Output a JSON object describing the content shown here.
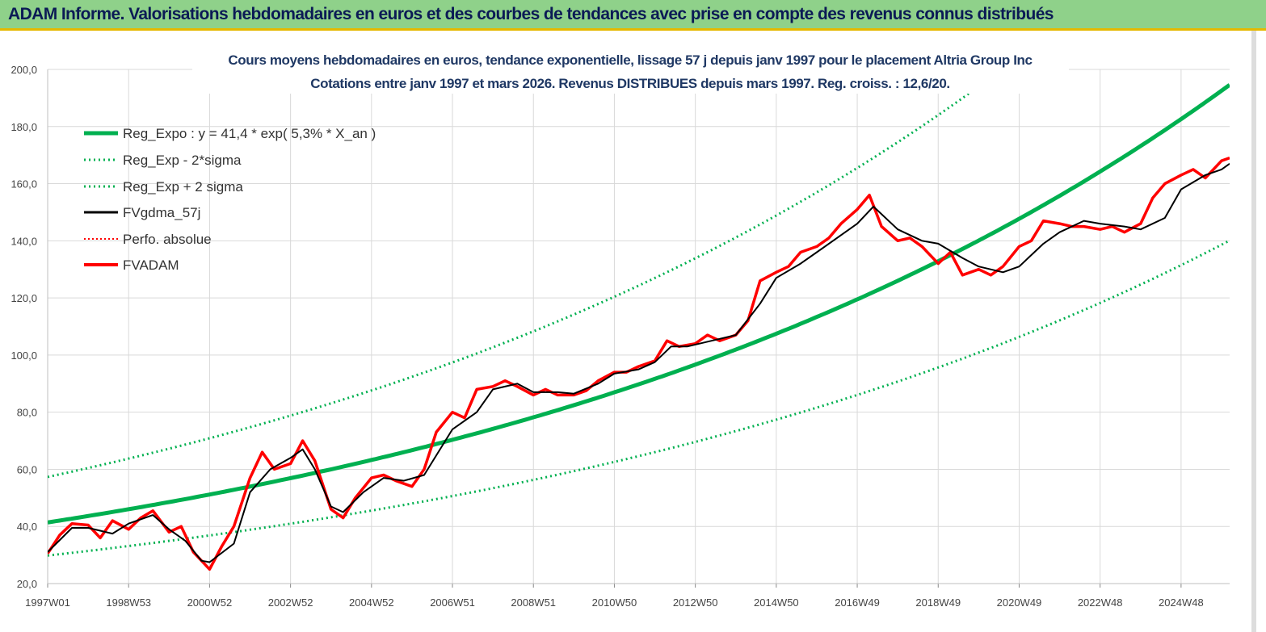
{
  "header": {
    "title": "ADAM Informe. Valorisations hebdomadaires en euros et des courbes de tendances avec prise en compte des revenus connus distribués"
  },
  "colors": {
    "banner": "#8fd18a",
    "reg_expo": "#00b050",
    "band": "#00b050",
    "fvgdma": "#000000",
    "perfo": "#ff0000",
    "fvadam": "#ff0000",
    "subtitle": "#1f3864"
  },
  "chart_data": {
    "type": "line",
    "subtitle_lines": [
      "Cours moyens hebdomadaires en euros, tendance exponentielle, lissage 57 j depuis janv 1997 pour le placement Altria Group Inc",
      "Cotations entre janv 1997 et mars 2026. Revenus DISTRIBUES depuis mars 1997. Reg. croiss. : 12,6/20."
    ],
    "ylim": [
      20,
      200
    ],
    "yticks": [
      "20,0",
      "40,0",
      "60,0",
      "80,0",
      "100,0",
      "120,0",
      "140,0",
      "160,0",
      "180,0",
      "200,0"
    ],
    "xlim": [
      1997.0,
      2026.2
    ],
    "xticks": [
      {
        "label": "1997W01",
        "x": 1997.0
      },
      {
        "label": "1998W53",
        "x": 1999.0
      },
      {
        "label": "2000W52",
        "x": 2001.0
      },
      {
        "label": "2002W52",
        "x": 2003.0
      },
      {
        "label": "2004W52",
        "x": 2005.0
      },
      {
        "label": "2006W51",
        "x": 2007.0
      },
      {
        "label": "2008W51",
        "x": 2009.0
      },
      {
        "label": "2010W50",
        "x": 2011.0
      },
      {
        "label": "2012W50",
        "x": 2013.0
      },
      {
        "label": "2014W50",
        "x": 2015.0
      },
      {
        "label": "2016W49",
        "x": 2017.0
      },
      {
        "label": "2018W49",
        "x": 2019.0
      },
      {
        "label": "2020W49",
        "x": 2021.0
      },
      {
        "label": "2022W48",
        "x": 2023.0
      },
      {
        "label": "2024W48",
        "x": 2025.0
      }
    ],
    "grid": true,
    "legend_position": "top-left",
    "legend": [
      {
        "label": "Reg_Expo : y = 41,4 * exp( 5,3% *  X_an )",
        "style": "solid-thick",
        "color": "#00b050"
      },
      {
        "label": "Reg_Exp - 2*sigma",
        "style": "dotted",
        "color": "#00b050"
      },
      {
        "label": "Reg_Exp + 2 sigma",
        "style": "dotted",
        "color": "#00b050"
      },
      {
        "label": "FVgdma_57j",
        "style": "solid",
        "color": "#000000"
      },
      {
        "label": "Perfo. absolue",
        "style": "dotted-thin",
        "color": "#ff0000"
      },
      {
        "label": "FVADAM",
        "style": "solid-thick",
        "color": "#ff0000"
      }
    ],
    "regression": {
      "a": 41.4,
      "rate": 0.053,
      "lower_factor": 0.72,
      "upper_factor": 1.385
    },
    "series": [
      {
        "name": "FVADAM",
        "x": [
          1997.0,
          1997.3,
          1997.6,
          1998.0,
          1998.3,
          1998.6,
          1999.0,
          1999.3,
          1999.6,
          2000.0,
          2000.3,
          2000.6,
          2001.0,
          2001.3,
          2001.6,
          2002.0,
          2002.3,
          2002.6,
          2003.0,
          2003.3,
          2003.6,
          2004.0,
          2004.3,
          2004.6,
          2005.0,
          2005.3,
          2005.6,
          2006.0,
          2006.3,
          2006.6,
          2007.0,
          2007.3,
          2007.6,
          2008.0,
          2008.3,
          2008.6,
          2009.0,
          2009.3,
          2009.6,
          2010.0,
          2010.3,
          2010.6,
          2011.0,
          2011.3,
          2011.6,
          2012.0,
          2012.3,
          2012.6,
          2013.0,
          2013.3,
          2013.6,
          2014.0,
          2014.3,
          2014.6,
          2015.0,
          2015.3,
          2015.6,
          2016.0,
          2016.3,
          2016.6,
          2017.0,
          2017.3,
          2017.6,
          2018.0,
          2018.3,
          2018.6,
          2019.0,
          2019.3,
          2019.6,
          2020.0,
          2020.3,
          2020.6,
          2021.0,
          2021.3,
          2021.6,
          2022.0,
          2022.3,
          2022.6,
          2023.0,
          2023.3,
          2023.6,
          2024.0,
          2024.3,
          2024.6,
          2025.0,
          2025.3,
          2025.6,
          2026.0,
          2026.2
        ],
        "y": [
          30.5,
          37.0,
          41.0,
          40.5,
          36.0,
          42.0,
          39.0,
          43.0,
          45.5,
          38.0,
          40.0,
          31.0,
          25.0,
          33.0,
          40.0,
          57.0,
          66.0,
          60.0,
          62.0,
          70.0,
          63.0,
          46.0,
          43.0,
          50.0,
          57.0,
          58.0,
          56.0,
          54.0,
          60.0,
          73.0,
          80.0,
          78.0,
          88.0,
          89.0,
          91.0,
          89.0,
          86.0,
          88.0,
          86.0,
          86.0,
          87.5,
          91.0,
          94.0,
          94.0,
          96.0,
          98.0,
          105.0,
          103.0,
          104.0,
          107.0,
          105.0,
          107.0,
          112.0,
          126.0,
          129.0,
          131.0,
          136.0,
          138.0,
          141.0,
          146.0,
          151.0,
          156.0,
          145.0,
          140.0,
          141.0,
          138.0,
          132.0,
          136.0,
          128.0,
          130.0,
          128.0,
          131.0,
          138.0,
          140.0,
          147.0,
          146.0,
          145.0,
          145.0,
          144.0,
          145.0,
          143.0,
          146.0,
          155.0,
          160.0,
          163.0,
          165.0,
          162.0,
          168.0,
          169.0
        ]
      },
      {
        "name": "FVgdma_57j",
        "x": [
          1997.0,
          1997.6,
          1998.0,
          1998.6,
          1999.0,
          1999.6,
          2000.0,
          2000.4,
          2000.8,
          2001.0,
          2001.6,
          2002.0,
          2002.5,
          2003.0,
          2003.3,
          2003.6,
          2004.0,
          2004.3,
          2004.8,
          2005.3,
          2005.8,
          2006.3,
          2007.0,
          2007.6,
          2008.0,
          2008.6,
          2009.0,
          2009.6,
          2010.0,
          2010.6,
          2011.0,
          2011.6,
          2012.0,
          2012.4,
          2012.8,
          2013.4,
          2014.0,
          2014.6,
          2015.0,
          2015.6,
          2016.0,
          2016.6,
          2017.0,
          2017.4,
          2018.0,
          2018.6,
          2019.0,
          2019.6,
          2020.0,
          2020.6,
          2021.0,
          2021.6,
          2022.0,
          2022.6,
          2023.0,
          2023.6,
          2024.0,
          2024.6,
          2025.0,
          2025.6,
          2026.0,
          2026.2
        ],
        "y": [
          31.0,
          39.5,
          39.5,
          37.5,
          41.0,
          44.0,
          39.0,
          35.0,
          28.0,
          27.5,
          34.0,
          52.0,
          60.0,
          64.0,
          67.0,
          60.0,
          47.0,
          45.0,
          52.0,
          57.0,
          56.0,
          58.0,
          74.0,
          80.0,
          88.0,
          90.0,
          87.0,
          87.0,
          86.5,
          90.0,
          93.5,
          95.0,
          97.5,
          103.0,
          103.0,
          105.0,
          107.0,
          118.0,
          127.0,
          132.0,
          136.0,
          142.0,
          146.0,
          152.0,
          144.0,
          140.0,
          139.0,
          134.0,
          131.0,
          129.0,
          131.0,
          139.0,
          143.0,
          147.0,
          146.0,
          145.0,
          144.0,
          148.0,
          158.0,
          163.0,
          165.0,
          167.0
        ]
      }
    ]
  }
}
